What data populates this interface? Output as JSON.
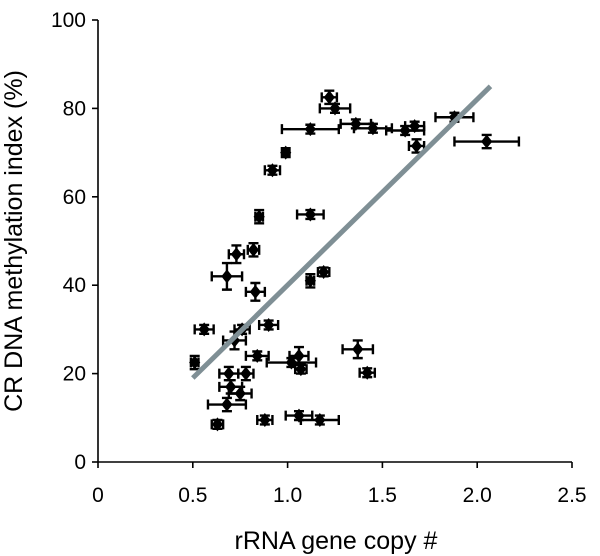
{
  "chart_data": {
    "type": "scatter",
    "xlabel": "rRNA gene copy #",
    "ylabel": "CR DNA methylation index (%)",
    "xlim": [
      0,
      2.5
    ],
    "ylim": [
      0,
      100
    ],
    "x_ticks": [
      "0",
      "0.5",
      "1.0",
      "1.5",
      "2.0",
      "2.5"
    ],
    "y_ticks": [
      "0",
      "20",
      "40",
      "60",
      "80",
      "100"
    ],
    "grid": false,
    "legend": "none",
    "marker_color": "#000000",
    "trendline_color": "#7f8f95",
    "trendline": {
      "x": [
        0.5,
        2.07
      ],
      "y": [
        19,
        85
      ]
    },
    "points": [
      {
        "x": 1.22,
        "y": 82.5,
        "xerr": 0.04,
        "yerr": 1.5
      },
      {
        "x": 1.25,
        "y": 80,
        "xerr": 0.08,
        "yerr": 1.0
      },
      {
        "x": 1.36,
        "y": 76.5,
        "xerr": 0.08,
        "yerr": 1.0
      },
      {
        "x": 1.45,
        "y": 75.5,
        "xerr": 0.1,
        "yerr": 1.0
      },
      {
        "x": 1.12,
        "y": 75.3,
        "xerr": 0.15,
        "yerr": 1.0
      },
      {
        "x": 1.62,
        "y": 75,
        "xerr": 0.1,
        "yerr": 1.0
      },
      {
        "x": 1.67,
        "y": 76,
        "xerr": 0.05,
        "yerr": 1.0
      },
      {
        "x": 1.88,
        "y": 78,
        "xerr": 0.1,
        "yerr": 1.0
      },
      {
        "x": 1.68,
        "y": 71.5,
        "xerr": 0.04,
        "yerr": 1.5
      },
      {
        "x": 2.05,
        "y": 72.5,
        "xerr": 0.17,
        "yerr": 1.5
      },
      {
        "x": 0.99,
        "y": 70,
        "xerr": 0.02,
        "yerr": 1.0
      },
      {
        "x": 0.92,
        "y": 66,
        "xerr": 0.04,
        "yerr": 1.0
      },
      {
        "x": 0.85,
        "y": 55.5,
        "xerr": 0.02,
        "yerr": 1.5
      },
      {
        "x": 1.12,
        "y": 56,
        "xerr": 0.07,
        "yerr": 1.0
      },
      {
        "x": 0.82,
        "y": 48,
        "xerr": 0.03,
        "yerr": 1.5
      },
      {
        "x": 0.73,
        "y": 47,
        "xerr": 0.04,
        "yerr": 2.0
      },
      {
        "x": 1.19,
        "y": 43,
        "xerr": 0.03,
        "yerr": 1.0
      },
      {
        "x": 0.68,
        "y": 42,
        "xerr": 0.08,
        "yerr": 3.0
      },
      {
        "x": 1.12,
        "y": 41,
        "xerr": 0.02,
        "yerr": 1.5
      },
      {
        "x": 0.83,
        "y": 38.5,
        "xerr": 0.05,
        "yerr": 2.0
      },
      {
        "x": 0.56,
        "y": 30,
        "xerr": 0.05,
        "yerr": 1.0
      },
      {
        "x": 0.9,
        "y": 31,
        "xerr": 0.05,
        "yerr": 1.0
      },
      {
        "x": 0.76,
        "y": 30,
        "xerr": 0.04,
        "yerr": 1.0
      },
      {
        "x": 0.72,
        "y": 27.5,
        "xerr": 0.06,
        "yerr": 2.0
      },
      {
        "x": 1.37,
        "y": 25.5,
        "xerr": 0.08,
        "yerr": 2.0
      },
      {
        "x": 0.84,
        "y": 24,
        "xerr": 0.06,
        "yerr": 1.0
      },
      {
        "x": 1.06,
        "y": 24,
        "xerr": 0.05,
        "yerr": 2.0
      },
      {
        "x": 1.02,
        "y": 22.5,
        "xerr": 0.13,
        "yerr": 1.0
      },
      {
        "x": 0.51,
        "y": 22.5,
        "xerr": 0.02,
        "yerr": 1.5
      },
      {
        "x": 1.07,
        "y": 21,
        "xerr": 0.03,
        "yerr": 1.0
      },
      {
        "x": 0.69,
        "y": 20,
        "xerr": 0.05,
        "yerr": 1.5
      },
      {
        "x": 0.78,
        "y": 20,
        "xerr": 0.04,
        "yerr": 1.5
      },
      {
        "x": 1.42,
        "y": 20.2,
        "xerr": 0.04,
        "yerr": 1.0
      },
      {
        "x": 0.7,
        "y": 17,
        "xerr": 0.06,
        "yerr": 1.5
      },
      {
        "x": 0.75,
        "y": 15.5,
        "xerr": 0.06,
        "yerr": 1.5
      },
      {
        "x": 0.68,
        "y": 13,
        "xerr": 0.1,
        "yerr": 1.5
      },
      {
        "x": 1.06,
        "y": 10.5,
        "xerr": 0.07,
        "yerr": 1.0
      },
      {
        "x": 0.88,
        "y": 9.5,
        "xerr": 0.04,
        "yerr": 1.0
      },
      {
        "x": 1.17,
        "y": 9.5,
        "xerr": 0.1,
        "yerr": 1.0
      },
      {
        "x": 0.63,
        "y": 8.5,
        "xerr": 0.03,
        "yerr": 1.0
      }
    ]
  }
}
